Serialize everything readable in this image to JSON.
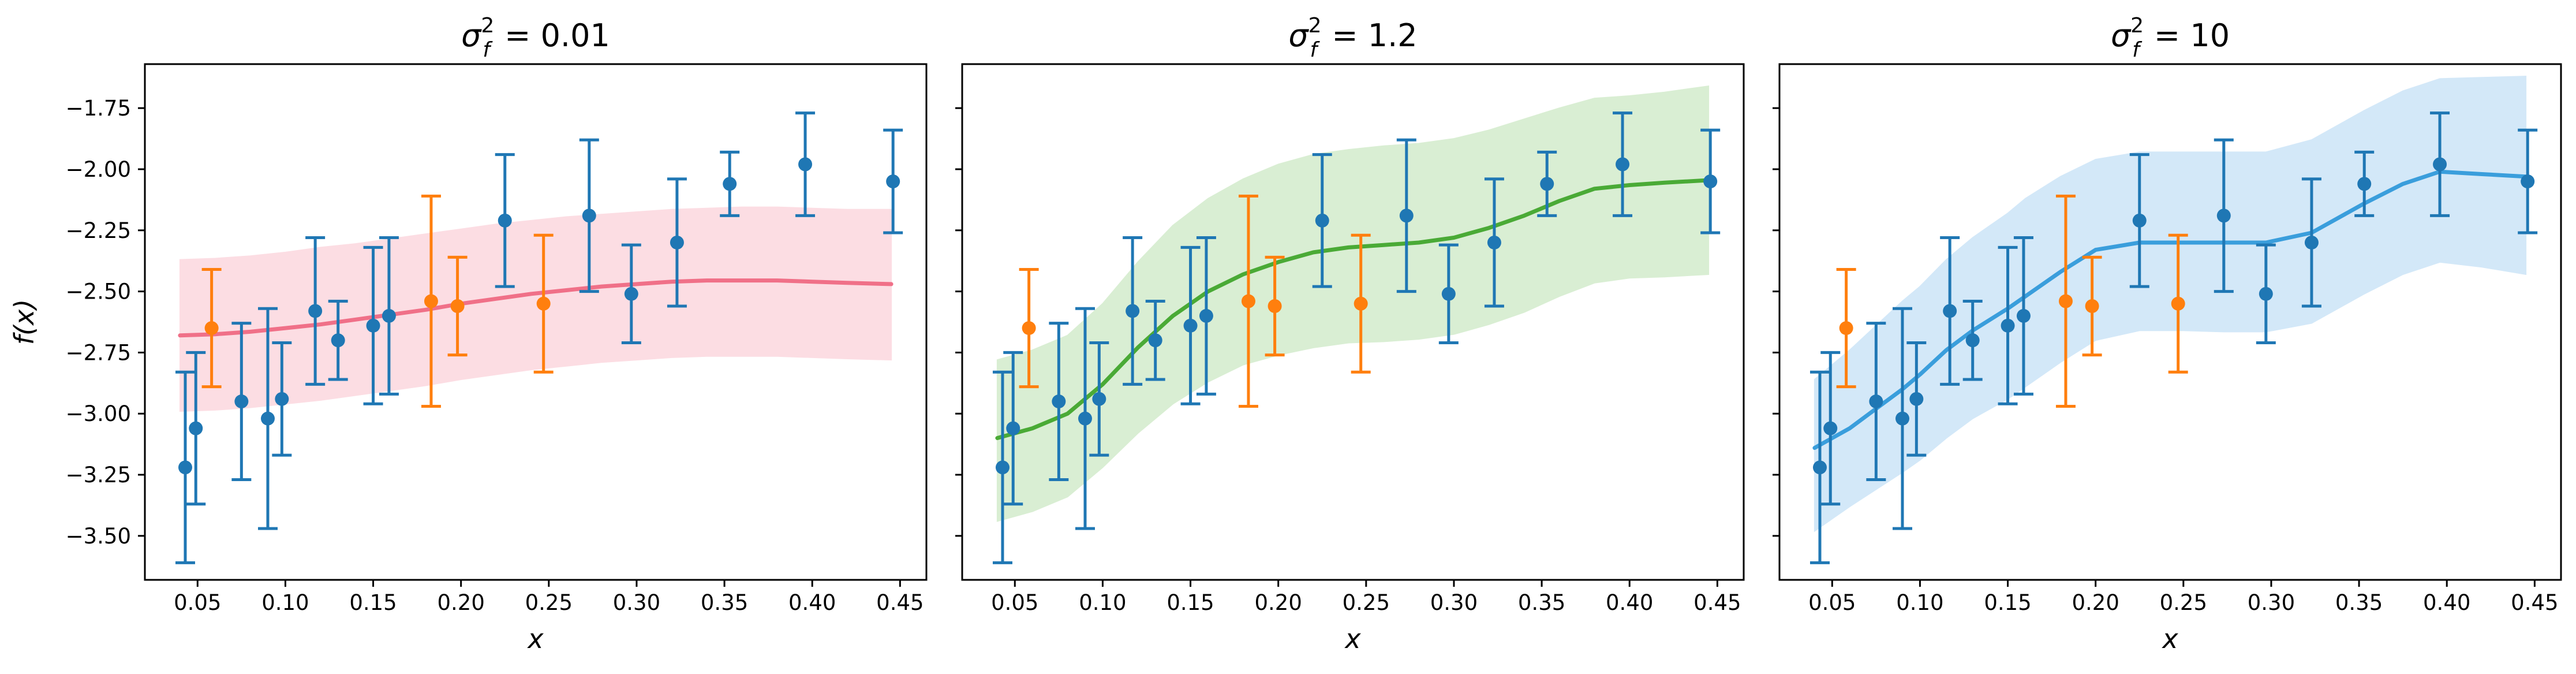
{
  "chart_data": [
    {
      "type": "line",
      "title_prefix": "σ",
      "title_sub": "f",
      "title_sup": "2",
      "title_value": " = 0.01",
      "xlabel": "x",
      "ylabel": "f(x)",
      "xlim": [
        0.02,
        0.465
      ],
      "ylim": [
        -3.68,
        -1.57
      ],
      "xticks": [
        "0.05",
        "0.10",
        "0.15",
        "0.20",
        "0.25",
        "0.30",
        "0.35",
        "0.40",
        "0.45"
      ],
      "yticks": [
        "-1.75",
        "-2.00",
        "-2.25",
        "-2.50",
        "-2.75",
        "-3.00",
        "-3.25",
        "-3.50"
      ],
      "line_color": "#f07088",
      "band_color": "#fcdde3",
      "mean": {
        "x": [
          0.04,
          0.06,
          0.08,
          0.1,
          0.12,
          0.14,
          0.16,
          0.18,
          0.2,
          0.22,
          0.24,
          0.26,
          0.28,
          0.3,
          0.32,
          0.34,
          0.36,
          0.38,
          0.4,
          0.42,
          0.445
        ],
        "y": [
          -2.68,
          -2.675,
          -2.665,
          -2.65,
          -2.635,
          -2.615,
          -2.595,
          -2.575,
          -2.55,
          -2.53,
          -2.51,
          -2.495,
          -2.48,
          -2.47,
          -2.46,
          -2.455,
          -2.455,
          -2.455,
          -2.46,
          -2.465,
          -2.47
        ]
      },
      "band": {
        "upper": [
          -2.37,
          -2.365,
          -2.355,
          -2.34,
          -2.32,
          -2.305,
          -2.285,
          -2.265,
          -2.245,
          -2.225,
          -2.21,
          -2.195,
          -2.185,
          -2.175,
          -2.165,
          -2.16,
          -2.155,
          -2.155,
          -2.16,
          -2.165,
          -2.165
        ],
        "lower": [
          -2.99,
          -2.985,
          -2.975,
          -2.96,
          -2.945,
          -2.925,
          -2.905,
          -2.885,
          -2.86,
          -2.84,
          -2.82,
          -2.805,
          -2.79,
          -2.78,
          -2.77,
          -2.765,
          -2.765,
          -2.765,
          -2.77,
          -2.775,
          -2.78
        ]
      },
      "observed": [
        {
          "x": 0.043,
          "y": -3.22,
          "err": 0.39
        },
        {
          "x": 0.049,
          "y": -3.06,
          "err": 0.31
        },
        {
          "x": 0.075,
          "y": -2.95,
          "err": 0.32
        },
        {
          "x": 0.09,
          "y": -3.02,
          "err": 0.45
        },
        {
          "x": 0.098,
          "y": -2.94,
          "err": 0.23
        },
        {
          "x": 0.117,
          "y": -2.58,
          "err": 0.3
        },
        {
          "x": 0.13,
          "y": -2.7,
          "err": 0.16
        },
        {
          "x": 0.15,
          "y": -2.64,
          "err": 0.32
        },
        {
          "x": 0.159,
          "y": -2.6,
          "err": 0.32
        },
        {
          "x": 0.225,
          "y": -2.21,
          "err": 0.27
        },
        {
          "x": 0.273,
          "y": -2.19,
          "err": 0.31
        },
        {
          "x": 0.297,
          "y": -2.51,
          "err": 0.2
        },
        {
          "x": 0.323,
          "y": -2.3,
          "err": 0.26
        },
        {
          "x": 0.353,
          "y": -2.06,
          "err": 0.13
        },
        {
          "x": 0.396,
          "y": -1.98,
          "err": 0.21
        },
        {
          "x": 0.446,
          "y": -2.05,
          "err": 0.21
        }
      ],
      "held_out": [
        {
          "x": 0.058,
          "y": -2.65,
          "err": 0.24
        },
        {
          "x": 0.183,
          "y": -2.54,
          "err": 0.43
        },
        {
          "x": 0.198,
          "y": -2.56,
          "err": 0.2
        },
        {
          "x": 0.247,
          "y": -2.55,
          "err": 0.28
        }
      ]
    },
    {
      "type": "line",
      "title_prefix": "σ",
      "title_sub": "f",
      "title_sup": "2",
      "title_value": " = 1.2",
      "xlabel": "x",
      "ylabel": "",
      "xlim": [
        0.02,
        0.465
      ],
      "ylim": [
        -3.68,
        -1.57
      ],
      "xticks": [
        "0.05",
        "0.10",
        "0.15",
        "0.20",
        "0.25",
        "0.30",
        "0.35",
        "0.40",
        "0.45"
      ],
      "yticks": [
        "-1.75",
        "-2.00",
        "-2.25",
        "-2.50",
        "-2.75",
        "-3.00",
        "-3.25",
        "-3.50"
      ],
      "line_color": "#4aaa36",
      "band_color": "#d9eed3",
      "mean": {
        "x": [
          0.04,
          0.06,
          0.08,
          0.1,
          0.12,
          0.14,
          0.16,
          0.18,
          0.2,
          0.22,
          0.24,
          0.26,
          0.28,
          0.3,
          0.32,
          0.34,
          0.36,
          0.38,
          0.4,
          0.42,
          0.445
        ],
        "y": [
          -3.1,
          -3.06,
          -3.0,
          -2.88,
          -2.73,
          -2.6,
          -2.5,
          -2.43,
          -2.38,
          -2.34,
          -2.32,
          -2.31,
          -2.3,
          -2.28,
          -2.24,
          -2.19,
          -2.13,
          -2.08,
          -2.065,
          -2.055,
          -2.045
        ]
      },
      "band": {
        "upper": [
          -2.78,
          -2.74,
          -2.68,
          -2.55,
          -2.38,
          -2.23,
          -2.12,
          -2.04,
          -1.98,
          -1.94,
          -1.92,
          -1.905,
          -1.895,
          -1.875,
          -1.84,
          -1.795,
          -1.75,
          -1.71,
          -1.7,
          -1.685,
          -1.66
        ],
        "lower": [
          -3.44,
          -3.4,
          -3.34,
          -3.22,
          -3.08,
          -2.96,
          -2.87,
          -2.8,
          -2.76,
          -2.73,
          -2.71,
          -2.705,
          -2.695,
          -2.675,
          -2.635,
          -2.585,
          -2.52,
          -2.465,
          -2.445,
          -2.44,
          -2.43
        ]
      },
      "observed": [
        {
          "x": 0.043,
          "y": -3.22,
          "err": 0.39
        },
        {
          "x": 0.049,
          "y": -3.06,
          "err": 0.31
        },
        {
          "x": 0.075,
          "y": -2.95,
          "err": 0.32
        },
        {
          "x": 0.09,
          "y": -3.02,
          "err": 0.45
        },
        {
          "x": 0.098,
          "y": -2.94,
          "err": 0.23
        },
        {
          "x": 0.117,
          "y": -2.58,
          "err": 0.3
        },
        {
          "x": 0.13,
          "y": -2.7,
          "err": 0.16
        },
        {
          "x": 0.15,
          "y": -2.64,
          "err": 0.32
        },
        {
          "x": 0.159,
          "y": -2.6,
          "err": 0.32
        },
        {
          "x": 0.225,
          "y": -2.21,
          "err": 0.27
        },
        {
          "x": 0.273,
          "y": -2.19,
          "err": 0.31
        },
        {
          "x": 0.297,
          "y": -2.51,
          "err": 0.2
        },
        {
          "x": 0.323,
          "y": -2.3,
          "err": 0.26
        },
        {
          "x": 0.353,
          "y": -2.06,
          "err": 0.13
        },
        {
          "x": 0.396,
          "y": -1.98,
          "err": 0.21
        },
        {
          "x": 0.446,
          "y": -2.05,
          "err": 0.21
        }
      ],
      "held_out": [
        {
          "x": 0.058,
          "y": -2.65,
          "err": 0.24
        },
        {
          "x": 0.183,
          "y": -2.54,
          "err": 0.43
        },
        {
          "x": 0.198,
          "y": -2.56,
          "err": 0.2
        },
        {
          "x": 0.247,
          "y": -2.55,
          "err": 0.28
        }
      ]
    },
    {
      "type": "line",
      "title_prefix": "σ",
      "title_sub": "f",
      "title_sup": "2",
      "title_value": " = 10",
      "xlabel": "x",
      "ylabel": "",
      "xlim": [
        0.02,
        0.465
      ],
      "ylim": [
        -3.68,
        -1.57
      ],
      "xticks": [
        "0.05",
        "0.10",
        "0.15",
        "0.20",
        "0.25",
        "0.30",
        "0.35",
        "0.40",
        "0.45"
      ],
      "yticks": [
        "-1.75",
        "-2.00",
        "-2.25",
        "-2.50",
        "-2.75",
        "-3.00",
        "-3.25",
        "-3.50"
      ],
      "line_color": "#3a9edc",
      "band_color": "#d3e8f8",
      "mean": {
        "x": [
          0.04,
          0.05,
          0.06,
          0.075,
          0.09,
          0.1,
          0.115,
          0.13,
          0.15,
          0.16,
          0.18,
          0.2,
          0.225,
          0.25,
          0.273,
          0.297,
          0.323,
          0.353,
          0.375,
          0.396,
          0.42,
          0.445
        ],
        "y": [
          -3.14,
          -3.1,
          -3.06,
          -2.98,
          -2.9,
          -2.84,
          -2.74,
          -2.66,
          -2.57,
          -2.52,
          -2.42,
          -2.33,
          -2.3,
          -2.3,
          -2.3,
          -2.3,
          -2.26,
          -2.14,
          -2.06,
          -2.01,
          -2.02,
          -2.03
        ]
      },
      "band": {
        "upper": [
          -2.86,
          -2.8,
          -2.74,
          -2.64,
          -2.54,
          -2.48,
          -2.37,
          -2.28,
          -2.18,
          -2.12,
          -2.03,
          -1.96,
          -1.93,
          -1.93,
          -1.93,
          -1.93,
          -1.88,
          -1.76,
          -1.68,
          -1.63,
          -1.625,
          -1.62
        ],
        "lower": [
          -3.48,
          -3.43,
          -3.38,
          -3.31,
          -3.24,
          -3.19,
          -3.1,
          -3.02,
          -2.94,
          -2.89,
          -2.79,
          -2.7,
          -2.66,
          -2.66,
          -2.665,
          -2.665,
          -2.63,
          -2.51,
          -2.43,
          -2.38,
          -2.4,
          -2.43
        ]
      },
      "observed": [
        {
          "x": 0.043,
          "y": -3.22,
          "err": 0.39
        },
        {
          "x": 0.049,
          "y": -3.06,
          "err": 0.31
        },
        {
          "x": 0.075,
          "y": -2.95,
          "err": 0.32
        },
        {
          "x": 0.09,
          "y": -3.02,
          "err": 0.45
        },
        {
          "x": 0.098,
          "y": -2.94,
          "err": 0.23
        },
        {
          "x": 0.117,
          "y": -2.58,
          "err": 0.3
        },
        {
          "x": 0.13,
          "y": -2.7,
          "err": 0.16
        },
        {
          "x": 0.15,
          "y": -2.64,
          "err": 0.32
        },
        {
          "x": 0.159,
          "y": -2.6,
          "err": 0.32
        },
        {
          "x": 0.225,
          "y": -2.21,
          "err": 0.27
        },
        {
          "x": 0.273,
          "y": -2.19,
          "err": 0.31
        },
        {
          "x": 0.297,
          "y": -2.51,
          "err": 0.2
        },
        {
          "x": 0.323,
          "y": -2.3,
          "err": 0.26
        },
        {
          "x": 0.353,
          "y": -2.06,
          "err": 0.13
        },
        {
          "x": 0.396,
          "y": -1.98,
          "err": 0.21
        },
        {
          "x": 0.446,
          "y": -2.05,
          "err": 0.21
        }
      ],
      "held_out": [
        {
          "x": 0.058,
          "y": -2.65,
          "err": 0.24
        },
        {
          "x": 0.183,
          "y": -2.54,
          "err": 0.43
        },
        {
          "x": 0.198,
          "y": -2.56,
          "err": 0.2
        },
        {
          "x": 0.247,
          "y": -2.55,
          "err": 0.28
        }
      ]
    }
  ],
  "colors": {
    "observed": "#1f77b4",
    "held_out": "#ff7f0e"
  }
}
